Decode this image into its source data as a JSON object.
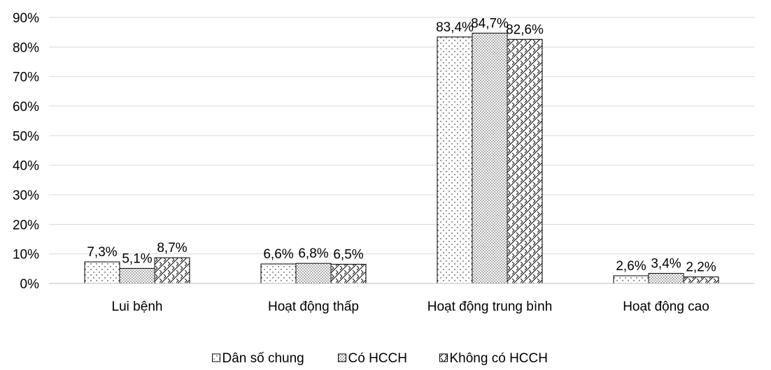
{
  "chart_data": {
    "type": "bar",
    "categories": [
      "Lui bệnh",
      "Hoạt động thấp",
      "Hoạt động trung bình",
      "Hoạt động cao"
    ],
    "series": [
      {
        "name": "Dân số chung",
        "values": [
          7.3,
          6.6,
          83.4,
          2.6
        ],
        "labels": [
          "7,3%",
          "6,6%",
          "83,4%",
          "2,6%"
        ],
        "pattern": "dots-sparse"
      },
      {
        "name": "Có HCCH",
        "values": [
          5.1,
          6.8,
          84.7,
          3.4
        ],
        "labels": [
          "5,1%",
          "6,8%",
          "84,7%",
          "3,4%"
        ],
        "pattern": "dots-dense"
      },
      {
        "name": "Không có HCCH",
        "values": [
          8.7,
          6.5,
          82.6,
          2.2
        ],
        "labels": [
          "8,7%",
          "6,5%",
          "82,6%",
          "2,2%"
        ],
        "pattern": "diagonal-cross"
      }
    ],
    "yticks": [
      "0%",
      "10%",
      "20%",
      "30%",
      "40%",
      "50%",
      "60%",
      "70%",
      "80%",
      "90%"
    ],
    "ylim": [
      0,
      90
    ],
    "grid": true,
    "legend_position": "bottom",
    "colors": {
      "bar_fill": "#ffffff",
      "bar_stroke": "#000000",
      "grid": "#d9d9d9",
      "pattern": "#000000"
    }
  }
}
